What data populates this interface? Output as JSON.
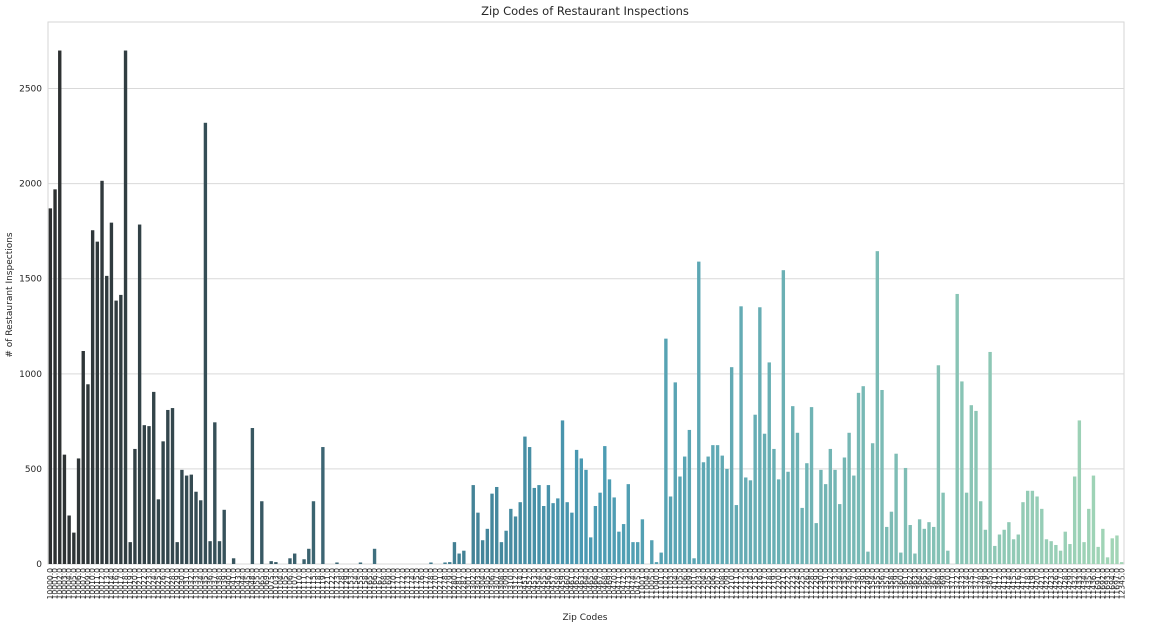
{
  "chart_data": {
    "type": "bar",
    "title": "Zip Codes of Restaurant Inspections",
    "xlabel": "Zip Codes",
    "ylabel": "# of Restaurant Inspections",
    "ylim": [
      0,
      2850
    ],
    "yticks": [
      0,
      500,
      1000,
      1500,
      2000,
      2500
    ],
    "grid": "horizontal",
    "palette": {
      "start": "#2d2f30",
      "mid": "#4a9ab3",
      "end": "#a3d6b6"
    },
    "categories": [
      "10000.0",
      "10001.0",
      "10002.0",
      "10003.0",
      "10004.0",
      "10005.0",
      "10006.0",
      "10007.0",
      "10009.0",
      "10010.0",
      "10011.0",
      "10012.0",
      "10013.0",
      "10014.0",
      "10016.0",
      "10017.0",
      "10018.0",
      "10019.0",
      "10020.0",
      "10021.0",
      "10022.0",
      "10023.0",
      "10024.0",
      "10025.0",
      "10026.0",
      "10027.0",
      "10028.0",
      "10029.0",
      "10030.0",
      "10031.0",
      "10032.0",
      "10033.0",
      "10034.0",
      "10035.0",
      "10036.0",
      "10037.0",
      "10038.0",
      "10039.0",
      "10040.0",
      "10041.0",
      "10043.0",
      "10044.0",
      "10045.0",
      "10048.0",
      "10055.0",
      "10065.0",
      "10069.0",
      "10075.0",
      "10103.0",
      "10104.0",
      "10105.0",
      "10106.0",
      "10107.0",
      "10110.0",
      "10111.0",
      "10112.0",
      "10115.0",
      "10118.0",
      "10119.0",
      "10121.0",
      "10122.0",
      "10123.0",
      "10128.0",
      "10129.0",
      "10153.0",
      "10154.0",
      "10155.0",
      "10158.0",
      "10165.0",
      "10166.0",
      "10167.0",
      "10168.0",
      "10169.0",
      "10170.0",
      "10171.0",
      "10172.0",
      "10173.0",
      "10174.0",
      "10175.0",
      "10176.0",
      "10177.0",
      "10178.0",
      "10270.0",
      "10271.0",
      "10278.0",
      "10279.0",
      "10280.0",
      "10281.0",
      "10282.0",
      "10301.0",
      "10302.0",
      "10303.0",
      "10304.0",
      "10305.0",
      "10306.0",
      "10307.0",
      "10308.0",
      "10309.0",
      "10310.0",
      "10312.0",
      "10314.0",
      "10451.0",
      "10452.0",
      "10453.0",
      "10454.0",
      "10455.0",
      "10456.0",
      "10457.0",
      "10458.0",
      "10459.0",
      "10460.0",
      "10461.0",
      "10462.0",
      "10463.0",
      "10464.0",
      "10465.0",
      "10466.0",
      "10467.0",
      "10468.0",
      "10469.0",
      "10470.0",
      "10471.0",
      "10472.0",
      "10473.0",
      "10474.0",
      "10475.0",
      "11001.0",
      "11004.0",
      "11005.0",
      "11040.0",
      "11101.0",
      "11102.0",
      "11103.0",
      "11104.0",
      "11105.0",
      "11106.0",
      "11109.0",
      "11201.0",
      "11203.0",
      "11204.0",
      "11205.0",
      "11206.0",
      "11207.0",
      "11208.0",
      "11209.0",
      "11210.0",
      "11211.0",
      "11212.0",
      "11213.0",
      "11214.0",
      "11215.0",
      "11216.0",
      "11217.0",
      "11218.0",
      "11219.0",
      "11220.0",
      "11221.0",
      "11222.0",
      "11223.0",
      "11224.0",
      "11225.0",
      "11226.0",
      "11228.0",
      "11229.0",
      "11230.0",
      "11231.0",
      "11232.0",
      "11233.0",
      "11234.0",
      "11235.0",
      "11236.0",
      "11237.0",
      "11238.0",
      "11239.0",
      "11249.0",
      "11354.0",
      "11355.0",
      "11356.0",
      "11357.0",
      "11358.0",
      "11359.0",
      "11360.0",
      "11361.0",
      "11362.0",
      "11363.0",
      "11364.0",
      "11365.0",
      "11366.0",
      "11367.0",
      "11368.0",
      "11369.0",
      "11370.0",
      "11371.0",
      "11372.0",
      "11373.0",
      "11374.0",
      "11375.0",
      "11377.0",
      "11378.0",
      "11379.0",
      "11385.0",
      "11411.0",
      "11412.0",
      "11413.0",
      "11414.0",
      "11415.0",
      "11416.0",
      "11417.0",
      "11418.0",
      "11419.0",
      "11420.0",
      "11421.0",
      "11422.0",
      "11423.0",
      "11426.0",
      "11427.0",
      "11428.0",
      "11429.0",
      "11432.0",
      "11433.0",
      "11434.0",
      "11435.0",
      "11436.0",
      "11691.0",
      "11692.0",
      "11693.0",
      "11694.0",
      "11697.0",
      "12345.0"
    ],
    "values": [
      1870,
      1970,
      2700,
      575,
      255,
      165,
      555,
      1120,
      945,
      1755,
      1695,
      2015,
      1515,
      1795,
      1385,
      1415,
      2700,
      115,
      605,
      1785,
      730,
      725,
      905,
      340,
      645,
      810,
      820,
      115,
      495,
      465,
      470,
      380,
      335,
      2320,
      120,
      745,
      120,
      285,
      0,
      30,
      0,
      0,
      0,
      715,
      0,
      330,
      0,
      15,
      10,
      0,
      0,
      30,
      55,
      0,
      25,
      80,
      330,
      0,
      615,
      0,
      0,
      8,
      0,
      0,
      0,
      0,
      8,
      0,
      0,
      80,
      0,
      0,
      0,
      0,
      0,
      0,
      0,
      0,
      0,
      0,
      0,
      8,
      0,
      0,
      8,
      10,
      115,
      55,
      70,
      0,
      415,
      270,
      125,
      185,
      370,
      405,
      115,
      175,
      290,
      250,
      325,
      670,
      615,
      400,
      415,
      305,
      415,
      320,
      345,
      755,
      325,
      270,
      600,
      555,
      495,
      140,
      305,
      375,
      620,
      445,
      350,
      170,
      210,
      420,
      115,
      115,
      235,
      0,
      125,
      10,
      60,
      1185,
      355,
      955,
      460,
      565,
      705,
      30,
      1590,
      535,
      565,
      625,
      625,
      570,
      500,
      1035,
      310,
      1355,
      455,
      440,
      785,
      1350,
      685,
      1060,
      605,
      445,
      1545,
      485,
      830,
      690,
      295,
      530,
      825,
      215,
      495,
      420,
      605,
      495,
      315,
      560,
      690,
      465,
      900,
      935,
      65,
      635,
      1645,
      915,
      195,
      275,
      580,
      60,
      505,
      205,
      55,
      235,
      185,
      220,
      195,
      1045,
      375,
      70,
      0,
      1420,
      960,
      375,
      835,
      805,
      330,
      180,
      1115,
      95,
      155,
      180,
      220,
      130,
      155,
      325,
      385,
      385,
      355,
      290,
      130,
      120,
      100,
      70,
      170,
      105,
      460,
      755,
      115,
      290,
      465,
      90,
      185,
      35,
      135,
      150,
      10
    ]
  }
}
